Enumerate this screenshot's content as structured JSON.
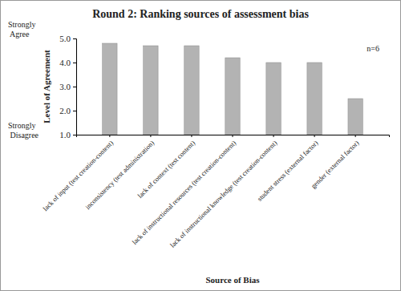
{
  "chart_data": {
    "type": "bar",
    "title": "Round 2: Ranking sources of assessment bias",
    "x_label": "Source of Bias",
    "y_label": "Level of Agreement",
    "annotations": [
      "Strongly Agree",
      "Strongly Disagree",
      "n=6"
    ],
    "categories": [
      "lack of input (test creation-content)",
      "inconsistency (test administration)",
      "lack of context (test content)",
      "lack of instructional resources (test creation-content)",
      "lack of instructional knowledge (test creation-content)",
      "student stress (external factor)",
      "gender (external factor)"
    ],
    "values": [
      4.8,
      4.7,
      4.7,
      4.2,
      4.0,
      4.0,
      2.5
    ],
    "color": "#b3b3b3",
    "ylim": [
      1,
      5
    ],
    "yticks": [
      {
        "value": 1,
        "label": "1.0"
      },
      {
        "value": 2,
        "label": "2.0"
      },
      {
        "value": 3,
        "label": "3.0"
      },
      {
        "value": 4,
        "label": "4.0"
      },
      {
        "value": 5,
        "label": "5.0"
      }
    ],
    "grid": false
  }
}
